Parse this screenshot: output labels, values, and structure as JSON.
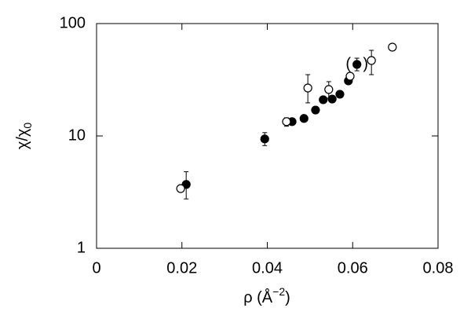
{
  "chart_data": {
    "type": "scatter",
    "xlabel": {
      "text": "ρ (Å",
      "sup": "−2",
      "tail": ")"
    },
    "ylabel": {
      "text": "χ/χ",
      "sub": "0"
    },
    "xlim": [
      0,
      0.08
    ],
    "xticks": [
      0,
      0.02,
      0.04,
      0.06,
      0.08
    ],
    "ylim": [
      1,
      100
    ],
    "yticks": [
      1,
      10,
      100
    ],
    "ylog": true,
    "grid": false,
    "annotations": [
      "(",
      ")"
    ],
    "series": [
      {
        "color": "#000000",
        "filled": true,
        "x": [
          0.021,
          0.0394,
          0.0458,
          0.0486,
          0.0513,
          0.0531,
          0.0552,
          0.057,
          0.059,
          0.061
        ],
        "values": [
          3.7,
          9.4,
          13.4,
          14.3,
          17.0,
          21.0,
          21.3,
          23.5,
          30.9,
          43.3
        ],
        "err_low": [
          2.75,
          8.2,
          null,
          null,
          null,
          null,
          null,
          null,
          null,
          38
        ],
        "err_high": [
          4.8,
          10.7,
          null,
          null,
          null,
          null,
          null,
          null,
          null,
          49.2
        ]
      },
      {
        "color": "#000000",
        "filled": false,
        "x": [
          0.0197,
          0.0445,
          0.0495,
          0.0544,
          0.0594,
          0.0644,
          0.0693
        ],
        "values": [
          3.4,
          13.4,
          26.7,
          25.9,
          34,
          46.9,
          61.7
        ],
        "err_low": [
          null,
          12.2,
          19.7,
          21.7,
          31.5,
          35.1,
          null
        ],
        "err_high": [
          null,
          14.5,
          35.1,
          30.4,
          36.5,
          57.8,
          null
        ]
      }
    ]
  }
}
